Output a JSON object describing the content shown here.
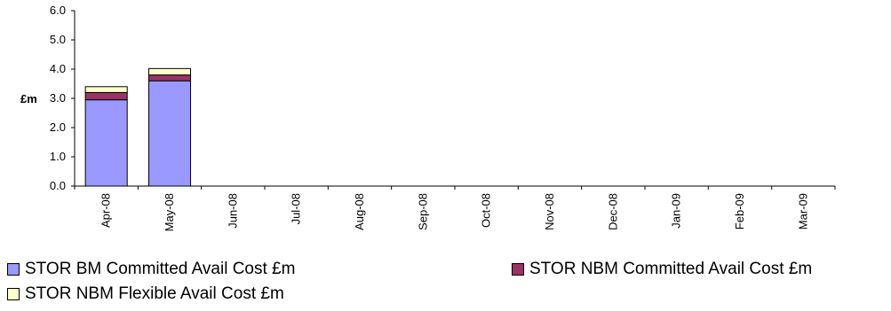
{
  "chart_data": {
    "type": "bar",
    "stacked": true,
    "ylabel": "£m",
    "xlabel": "",
    "ylim": [
      0,
      6
    ],
    "yticks": [
      "0.0",
      "1.0",
      "2.0",
      "3.0",
      "4.0",
      "5.0",
      "6.0"
    ],
    "categories": [
      "Apr-08",
      "May-08",
      "Jun-08",
      "Jul-08",
      "Aug-08",
      "Sep-08",
      "Oct-08",
      "Nov-08",
      "Dec-08",
      "Jan-09",
      "Feb-09",
      "Mar-09"
    ],
    "series": [
      {
        "name": "STOR BM  Committed Avail Cost £m",
        "color": "#9999ff",
        "values": [
          2.95,
          3.6,
          null,
          null,
          null,
          null,
          null,
          null,
          null,
          null,
          null,
          null
        ]
      },
      {
        "name": "STOR NBM Committed Avail Cost £m",
        "color": "#993366",
        "values": [
          0.25,
          0.2,
          null,
          null,
          null,
          null,
          null,
          null,
          null,
          null,
          null,
          null
        ]
      },
      {
        "name": "STOR NBM Flexible Avail Cost £m",
        "color": "#ffffcc",
        "values": [
          0.2,
          0.22,
          null,
          null,
          null,
          null,
          null,
          null,
          null,
          null,
          null,
          null
        ]
      }
    ],
    "legend_position": "bottom",
    "grid": false
  }
}
